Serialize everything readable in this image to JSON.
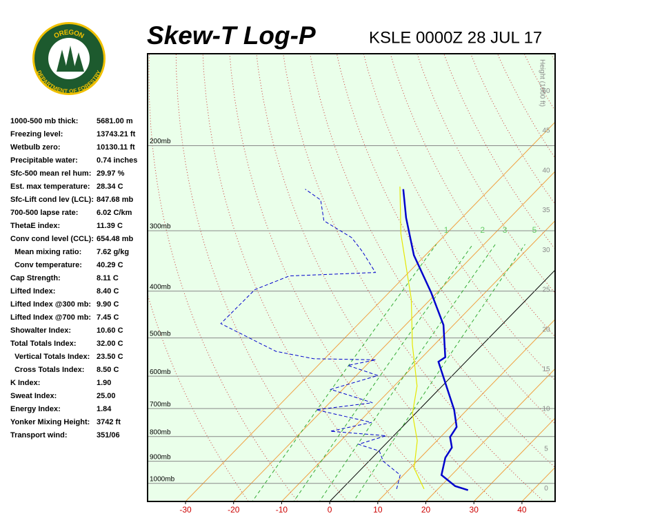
{
  "logo": {
    "top": "OREGON",
    "bottom": "DEPARTMENT OF FORESTRY"
  },
  "stats": [
    {
      "label": "1000-500 mb thick:",
      "value": "5681.00 m"
    },
    {
      "label": "Freezing level:",
      "value": "13743.21 ft"
    },
    {
      "label": "Wetbulb zero:",
      "value": "10130.11 ft"
    },
    {
      "label": "Precipitable water:",
      "value": "0.74 inches"
    },
    {
      "label": "Sfc-500 mean rel hum:",
      "value": "29.97 %"
    },
    {
      "label": "Est. max temperature:",
      "value": "28.34 C"
    },
    {
      "label": "Sfc-Lift cond lev (LCL):",
      "value": "847.68 mb"
    },
    {
      "label": "700-500 lapse rate:",
      "value": "6.02 C/km"
    },
    {
      "label": "ThetaE index:",
      "value": "11.39 C"
    },
    {
      "label": "Conv cond level (CCL):",
      "value": "654.48 mb"
    },
    {
      "label": "  Mean mixing ratio:",
      "value": "7.62 g/kg"
    },
    {
      "label": "  Conv temperature:",
      "value": "40.29 C"
    },
    {
      "label": "Cap Strength:",
      "value": "8.11 C"
    },
    {
      "label": "Lifted Index:",
      "value": "8.40 C"
    },
    {
      "label": "Lifted Index @300 mb:",
      "value": "9.90 C"
    },
    {
      "label": "Lifted Index @700 mb:",
      "value": "7.45 C"
    },
    {
      "label": "Showalter Index:",
      "value": "10.60 C"
    },
    {
      "label": "Total Totals Index:",
      "value": "32.00 C"
    },
    {
      "label": "  Vertical Totals Index:",
      "value": "23.50 C"
    },
    {
      "label": "  Cross Totals Index:",
      "value": "8.50 C"
    },
    {
      "label": "K Index:",
      "value": "1.90"
    },
    {
      "label": "Sweat Index:",
      "value": "25.00"
    },
    {
      "label": "Energy Index:",
      "value": "1.84"
    },
    {
      "label": "Yonker Mixing Height:",
      "value": "3742 ft"
    },
    {
      "label": "Transport wind:",
      "value": "351/06"
    }
  ],
  "chart_data": {
    "type": "skewt",
    "title": "Skew-T Log-P",
    "subtitle": "KSLE 0000Z 28 JUL 17",
    "y2label": "Height (1000 ft)",
    "xlim": [
      -37.9,
      46.9
    ],
    "xticks": [
      -30,
      -20,
      -10,
      0,
      10,
      20,
      30,
      40
    ],
    "ylim": [
      1090,
      129
    ],
    "log_scale_y": true,
    "yticks": [
      {
        "value": 200,
        "label": "200mb"
      },
      {
        "value": 300,
        "label": "300mb"
      },
      {
        "value": 400,
        "label": "400mb"
      },
      {
        "value": 500,
        "label": "500mb"
      },
      {
        "value": 600,
        "label": "600mb"
      },
      {
        "value": 700,
        "label": "700mb"
      },
      {
        "value": 800,
        "label": "800mb"
      },
      {
        "value": 900,
        "label": "900mb"
      },
      {
        "value": 1000,
        "label": "1000mb"
      }
    ],
    "y2lim": [
      -1.6,
      54.7
    ],
    "y2ticks": [
      0,
      5,
      10,
      15,
      20,
      25,
      30,
      35,
      40,
      45,
      50
    ],
    "mixing_ratios": [
      1,
      2,
      3,
      5
    ],
    "series": [
      {
        "color": "#0000cc",
        "dash": false,
        "p": [
          1033,
          1013,
          961,
          885,
          843,
          802,
          764,
          704,
          617,
          560,
          548,
          470,
          403,
          337,
          282,
          246
        ],
        "t": [
          26.5,
          23.0,
          17.9,
          15.2,
          14.5,
          12.0,
          11.3,
          7.3,
          -0.2,
          -5.7,
          -5.2,
          -12.1,
          -21.2,
          -32.4,
          -41.6,
          -48.0
        ]
      },
      {
        "color": "#0000cc",
        "dash": true,
        "p": [
          1027,
          961,
          900,
          857,
          830,
          797,
          780,
          748,
          704,
          681,
          639,
          598,
          570,
          555,
          552,
          533,
          467,
          397,
          372,
          366,
          331,
          310,
          286,
          259,
          246
        ],
        "t": [
          11.4,
          9.3,
          3.0,
          0.1,
          -5.6,
          -1.6,
          -14.1,
          -7.3,
          -21.4,
          -11.1,
          -22.5,
          -15.5,
          -23.8,
          -19.1,
          -32.3,
          -41.6,
          -58.7,
          -58.5,
          -54.1,
          -36.9,
          -43.9,
          -48.9,
          -58.1,
          -63.0,
          -68.4
        ]
      },
      {
        "color": "#e6e600",
        "dash": false,
        "p": [
          1027,
          930,
          816,
          717,
          629,
          516,
          415,
          304,
          243
        ],
        "t": [
          17.1,
          10.8,
          5.9,
          -0.6,
          -5.2,
          -14.6,
          -24.1,
          -39.5,
          -49.2
        ]
      }
    ]
  }
}
